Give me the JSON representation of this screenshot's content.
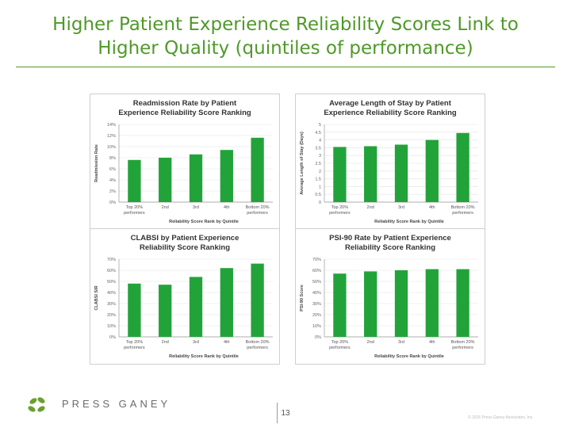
{
  "slide": {
    "title_line1": "Higher Patient Experience Reliability Scores Link to",
    "title_line2": "Higher Quality (quintiles of performance)",
    "page_number": "13",
    "copyright": "© 2016 Press Ganey Associates, Inc.",
    "logo_text": "PRESS GANEY",
    "accent_color": "#4e9a28",
    "bar_color": "#22a33a"
  },
  "chart_data": [
    {
      "type": "bar",
      "title": "Readmission Rate by Patient Experience Reliability Score Ranking",
      "title_lines": [
        "Readmission Rate by Patient",
        "Experience Reliability Score Ranking"
      ],
      "xlabel": "Reliability Score Rank by Quintile",
      "ylabel": "Readmission Rate",
      "categories": [
        "Top 20% performers",
        "2nd",
        "3rd",
        "4th",
        "Bottom 20% performers"
      ],
      "category_lines": [
        [
          "Top 20%",
          "performers"
        ],
        [
          "2nd"
        ],
        [
          "3rd"
        ],
        [
          "4th"
        ],
        [
          "Bottom 20%",
          "performers"
        ]
      ],
      "values": [
        7.6,
        8.0,
        8.6,
        9.4,
        11.6
      ],
      "ylim": [
        0,
        14
      ],
      "yticks": [
        0,
        2,
        4,
        6,
        8,
        10,
        12,
        14
      ],
      "ytick_labels": [
        "0%",
        "2%",
        "4%",
        "6%",
        "8%",
        "10%",
        "12%",
        "14%"
      ]
    },
    {
      "type": "bar",
      "title": "Average Length of Stay by Patient Experience Reliability Score Ranking",
      "title_lines": [
        "Average Length of Stay by Patient",
        "Experience Reliability Score Ranking"
      ],
      "xlabel": "Reliability Score Rank by Quintile",
      "ylabel": "Average Length of Stay (Days)",
      "categories": [
        "Top 20% performers",
        "2nd",
        "3rd",
        "4th",
        "Bottom 20% performers"
      ],
      "category_lines": [
        [
          "Top 20%",
          "performers"
        ],
        [
          "2nd"
        ],
        [
          "3rd"
        ],
        [
          "4th"
        ],
        [
          "Bottom 20%",
          "performers"
        ]
      ],
      "values": [
        3.55,
        3.6,
        3.7,
        4.0,
        4.45
      ],
      "ylim": [
        0,
        5
      ],
      "yticks": [
        0,
        0.5,
        1,
        1.5,
        2,
        2.5,
        3,
        3.5,
        4,
        4.5,
        5
      ],
      "ytick_labels": [
        "0",
        "0.5",
        "1",
        "1.5",
        "2",
        "2.5",
        "3",
        "3.5",
        "4",
        "4.5",
        "5"
      ]
    },
    {
      "type": "bar",
      "title": "CLABSI by Patient Experience Reliability Score Ranking",
      "title_lines": [
        "CLABSI by Patient Experience",
        "Reliability Score Ranking"
      ],
      "xlabel": "Reliability Score Rank by Quintile",
      "ylabel": "CLABSI SIR",
      "categories": [
        "Top 20% performers",
        "2nd",
        "3rd",
        "4th",
        "Bottom 20% performers"
      ],
      "category_lines": [
        [
          "Top 20%",
          "performers"
        ],
        [
          "2nd"
        ],
        [
          "3rd"
        ],
        [
          "4th"
        ],
        [
          "Bottom 20%",
          "performers"
        ]
      ],
      "values": [
        48,
        47,
        54,
        62,
        66
      ],
      "ylim": [
        0,
        70
      ],
      "yticks": [
        0,
        10,
        20,
        30,
        40,
        50,
        60,
        70
      ],
      "ytick_labels": [
        "0%",
        "10%",
        "20%",
        "30%",
        "40%",
        "50%",
        "60%",
        "70%"
      ]
    },
    {
      "type": "bar",
      "title": "PSI-90 Rate by Patient Experience Reliability Score Ranking",
      "title_lines": [
        "PSI-90 Rate by Patient Experience",
        "Reliability Score Ranking"
      ],
      "xlabel": "Reliability Score Rank by Quintile",
      "ylabel": "PSI-90 Score",
      "categories": [
        "Top 20% performers",
        "2nd",
        "3rd",
        "4th",
        "Bottom 20% performers"
      ],
      "category_lines": [
        [
          "Top 20%",
          "performers"
        ],
        [
          "2nd"
        ],
        [
          "3rd"
        ],
        [
          "4th"
        ],
        [
          "Bottom 20%",
          "performers"
        ]
      ],
      "values": [
        57,
        59,
        60,
        61,
        61
      ],
      "ylim": [
        0,
        70
      ],
      "yticks": [
        0,
        10,
        20,
        30,
        40,
        50,
        60,
        70
      ],
      "ytick_labels": [
        "0%",
        "10%",
        "20%",
        "30%",
        "40%",
        "50%",
        "60%",
        "70%"
      ]
    }
  ]
}
